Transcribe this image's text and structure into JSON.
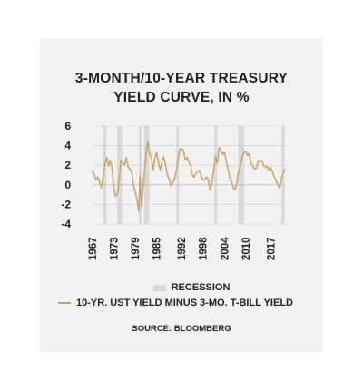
{
  "title_lines": [
    "3-MONTH/10-YEAR TREASURY",
    "YIELD CURVE, IN %"
  ],
  "legend": {
    "recession_label": "RECESSION",
    "series_label": "10-YR. UST YIELD MINUS 3-MO. T-BILL YIELD"
  },
  "source": "SOURCE: BLOOMBERG",
  "colors": {
    "line": "#c8a46a",
    "recession": "#d9d9d9",
    "grid": "#d0d0d0",
    "zero": "#aaaaaa"
  },
  "chart_data": {
    "type": "line",
    "title": "3-MONTH/10-YEAR TREASURY YIELD CURVE, IN %",
    "xlabel": "",
    "ylabel": "",
    "xlim": [
      1967,
      2021
    ],
    "ylim": [
      -4,
      6
    ],
    "y_ticks": [
      6,
      4,
      2,
      0,
      -2,
      -4
    ],
    "x_ticks": [
      1967,
      1973,
      1979,
      1985,
      1992,
      1998,
      2004,
      2010,
      2017
    ],
    "grid": true,
    "recessions": [
      [
        1969.9,
        1970.9
      ],
      [
        1973.9,
        1975.2
      ],
      [
        1980.0,
        1980.5
      ],
      [
        1981.5,
        1982.9
      ],
      [
        1990.5,
        1991.2
      ],
      [
        2001.2,
        2001.9
      ],
      [
        2007.9,
        2009.5
      ],
      [
        2020.1,
        2020.4
      ]
    ],
    "series": [
      {
        "name": "10-YR. UST YIELD MINUS 3-MO. T-BILL YIELD",
        "x": [
          1967,
          1967.5,
          1968,
          1968.5,
          1969,
          1969.5,
          1970,
          1970.5,
          1971,
          1971.5,
          1972,
          1972.5,
          1973,
          1973.5,
          1974,
          1974.5,
          1975,
          1975.5,
          1976,
          1976.5,
          1977,
          1977.5,
          1978,
          1978.5,
          1979,
          1979.5,
          1980,
          1980.3,
          1980.7,
          1981,
          1981.5,
          1982,
          1982.5,
          1983,
          1983.5,
          1984,
          1984.5,
          1985,
          1985.5,
          1986,
          1986.5,
          1987,
          1987.5,
          1988,
          1988.5,
          1989,
          1989.5,
          1990,
          1990.5,
          1991,
          1991.5,
          1992,
          1992.5,
          1993,
          1993.5,
          1994,
          1994.5,
          1995,
          1995.5,
          1996,
          1996.5,
          1997,
          1997.5,
          1998,
          1998.5,
          1999,
          1999.5,
          2000,
          2000.5,
          2001,
          2001.5,
          2002,
          2002.5,
          2003,
          2003.5,
          2004,
          2004.5,
          2005,
          2005.5,
          2006,
          2006.5,
          2007,
          2007.5,
          2008,
          2008.5,
          2009,
          2009.5,
          2010,
          2010.5,
          2011,
          2011.5,
          2012,
          2012.5,
          2013,
          2013.5,
          2014,
          2014.5,
          2015,
          2015.5,
          2016,
          2016.5,
          2017,
          2017.5,
          2018,
          2018.5,
          2019,
          2019.5,
          2020,
          2020.5,
          2021
        ],
        "values": [
          1.5,
          1.0,
          0.5,
          0.8,
          0.2,
          -0.3,
          1.0,
          2.2,
          2.8,
          1.9,
          2.5,
          1.6,
          -0.5,
          -1.2,
          -0.8,
          0.7,
          2.5,
          2.3,
          2.0,
          2.8,
          1.8,
          1.6,
          1.3,
          0.0,
          -0.8,
          -1.5,
          -2.7,
          0.9,
          -2.2,
          -1.0,
          1.0,
          3.2,
          4.5,
          3.2,
          2.8,
          1.5,
          2.7,
          3.3,
          2.3,
          1.5,
          2.5,
          2.9,
          2.0,
          1.0,
          0.6,
          -0.1,
          0.2,
          0.6,
          1.5,
          2.6,
          3.6,
          3.7,
          3.5,
          2.6,
          2.8,
          2.4,
          2.0,
          1.0,
          0.8,
          1.2,
          1.3,
          1.5,
          0.9,
          0.5,
          0.5,
          0.8,
          0.5,
          -0.5,
          0.2,
          1.5,
          2.9,
          2.2,
          3.8,
          3.6,
          3.1,
          3.3,
          2.5,
          1.6,
          0.8,
          0.3,
          -0.3,
          -0.5,
          0.2,
          1.5,
          2.0,
          2.8,
          3.3,
          3.4,
          3.0,
          3.2,
          2.2,
          1.9,
          1.6,
          1.7,
          2.5,
          2.4,
          2.5,
          2.0,
          1.8,
          1.9,
          1.5,
          1.8,
          1.3,
          0.8,
          0.4,
          0.0,
          -0.3,
          0.6,
          1.2,
          1.6
        ]
      }
    ]
  }
}
